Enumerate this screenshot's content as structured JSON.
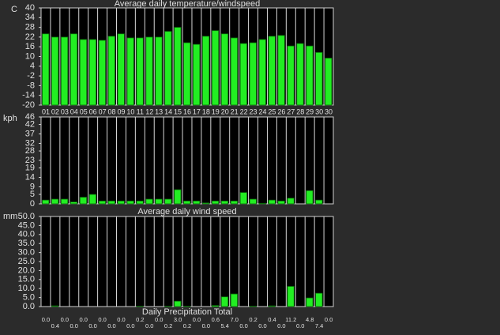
{
  "chart_data": [
    {
      "type": "bar",
      "title": "Average daily temperature/windspeed",
      "y_label": "C",
      "categories": [
        "01",
        "02",
        "03",
        "04",
        "05",
        "06",
        "07",
        "08",
        "09",
        "10",
        "11",
        "12",
        "13",
        "14",
        "15",
        "16",
        "17",
        "18",
        "19",
        "20",
        "21",
        "22",
        "23",
        "24",
        "25",
        "26",
        "27",
        "28",
        "29",
        "30",
        "30"
      ],
      "values": [
        24,
        22,
        22,
        24,
        20.5,
        20.5,
        20,
        22.5,
        24,
        21.5,
        21.5,
        22,
        22,
        25.5,
        28,
        18.5,
        17.5,
        22.5,
        26,
        24,
        21.5,
        18,
        18.5,
        20.5,
        22.5,
        23,
        16.5,
        18,
        16.5,
        12.5,
        9
      ],
      "color": "#22ee22",
      "ylim": [
        -20,
        40
      ],
      "yticks": [
        -20,
        -14,
        -8,
        -2,
        4,
        10,
        16,
        22,
        28,
        34,
        40
      ]
    },
    {
      "type": "bar",
      "title": "Average daily wind speed",
      "y_label": "kph",
      "values": [
        2,
        2.5,
        2.5,
        1,
        3.5,
        5,
        1.5,
        1.5,
        1.5,
        1.5,
        1.5,
        2.5,
        2.5,
        2.5,
        7.5,
        1.5,
        1.5,
        0.5,
        1.5,
        1.5,
        1.5,
        6,
        2.5,
        0.3,
        2,
        1.5,
        3,
        0,
        7,
        2,
        0
      ],
      "color": "#22ee22",
      "ylim": [
        0,
        46
      ],
      "yticks": [
        0,
        5,
        9,
        14,
        19,
        23,
        28,
        32,
        37,
        42,
        46
      ]
    },
    {
      "type": "bar",
      "title": "Daily Precipitation Total",
      "y_label": "mm",
      "values": [
        0,
        0.4,
        0,
        0,
        0,
        0,
        0,
        0,
        0,
        0,
        0.2,
        0,
        0,
        0.2,
        3,
        0.2,
        0,
        0,
        0.6,
        5.4,
        7,
        0,
        0.2,
        0,
        0.4,
        0,
        11.2,
        0,
        4.8,
        7.4,
        0
      ],
      "value_labels": [
        "0.0",
        "0.4",
        "0.0",
        "0.0",
        "0.0",
        "0.0",
        "0.0",
        "0.0",
        "0.0",
        "0.0",
        "0.2",
        "0.0",
        "0.0",
        "0.2",
        "3.0",
        "0.2",
        "0.0",
        "0.0",
        "0.6",
        "5.4",
        "7.0",
        "0.0",
        "0.2",
        "0.0",
        "0.4",
        "0.0",
        "11.2",
        "0.0",
        "4.8",
        "7.4",
        "0.0"
      ],
      "color": "#22ee22",
      "ylim": [
        0,
        50
      ],
      "yticks": [
        {
          "value": 0,
          "label": "0.0"
        },
        {
          "value": 5,
          "label": "5.0"
        },
        {
          "value": 10,
          "label": "10.0"
        },
        {
          "value": 15,
          "label": "15.0"
        },
        {
          "value": 20,
          "label": "20.0"
        },
        {
          "value": 25,
          "label": "25.0"
        },
        {
          "value": 30,
          "label": "30.0"
        },
        {
          "value": 35,
          "label": "35.0"
        },
        {
          "value": 40,
          "label": "40.0"
        },
        {
          "value": 45,
          "label": "45.0"
        },
        {
          "value": 50,
          "label": "50.0"
        }
      ]
    }
  ]
}
